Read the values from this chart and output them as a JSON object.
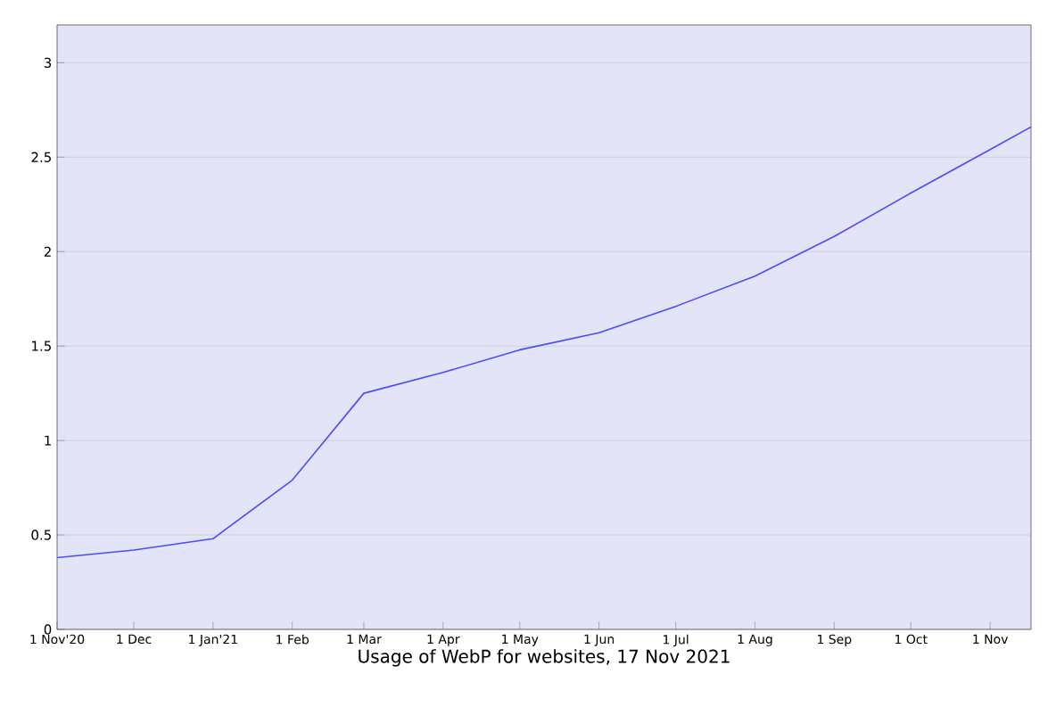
{
  "chart_data": {
    "type": "line",
    "xlabel": "Usage of WebP for websites, 17 Nov 2021",
    "x": [
      "2020-11-01",
      "2020-12-01",
      "2021-01-01",
      "2021-02-01",
      "2021-03-01",
      "2021-04-01",
      "2021-05-01",
      "2021-06-01",
      "2021-07-01",
      "2021-08-01",
      "2021-09-01",
      "2021-10-01",
      "2021-11-01",
      "2021-11-17"
    ],
    "series": [
      {
        "color": "#4a4aff",
        "values": [
          0.38,
          0.42,
          0.48,
          0.79,
          1.25,
          1.36,
          1.48,
          1.57,
          1.71,
          1.87,
          2.08,
          2.31,
          2.54,
          2.66
        ]
      }
    ],
    "xlim": [
      "2020-11-01",
      "2021-11-17"
    ],
    "xticks": [
      {
        "value": "2020-11-01",
        "label": "1 Nov'20"
      },
      {
        "value": "2020-12-01",
        "label": "1 Dec"
      },
      {
        "value": "2021-01-01",
        "label": "1 Jan'21"
      },
      {
        "value": "2021-02-01",
        "label": "1 Feb"
      },
      {
        "value": "2021-03-01",
        "label": "1 Mar"
      },
      {
        "value": "2021-04-01",
        "label": "1 Apr"
      },
      {
        "value": "2021-05-01",
        "label": "1 May"
      },
      {
        "value": "2021-06-01",
        "label": "1 Jun"
      },
      {
        "value": "2021-07-01",
        "label": "1 Jul"
      },
      {
        "value": "2021-08-01",
        "label": "1 Aug"
      },
      {
        "value": "2021-09-01",
        "label": "1 Sep"
      },
      {
        "value": "2021-10-01",
        "label": "1 Oct"
      },
      {
        "value": "2021-11-01",
        "label": "1 Nov"
      }
    ],
    "ylim": [
      0,
      3.2
    ],
    "yticks": [
      0,
      0.5,
      1,
      1.5,
      2,
      2.5,
      3
    ],
    "grid": "y",
    "marker": "none",
    "line_style": "solid"
  }
}
